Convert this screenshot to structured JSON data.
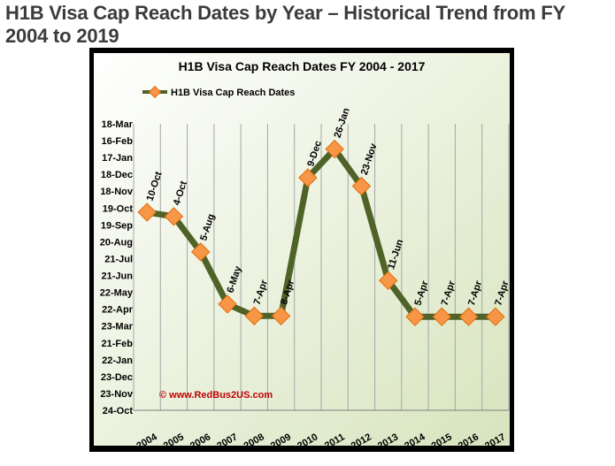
{
  "page": {
    "title": "H1B Visa Cap Reach Dates by Year – Historical Trend from FY 2004 to 2019"
  },
  "colors": {
    "line": "#4f6228",
    "marker_fill": "#f79646",
    "marker_stroke": "#e46c0a",
    "plot_bg_start": "#ffffff",
    "plot_bg_end": "#d7e4bd",
    "frame": "#000000",
    "watermark": "#c00000"
  },
  "chart_data": {
    "type": "line",
    "title": "H1B Visa  Cap Reach Dates FY 2004 - 2017",
    "legend": "H1B Visa Cap Reach Dates",
    "legend_position": "top-left",
    "watermark": "© www.RedBus2US.com",
    "xlabel": "",
    "ylabel": "",
    "grid": "vertical",
    "y_ticks": [
      "18-Mar",
      "16-Feb",
      "17-Jan",
      "18-Dec",
      "18-Nov",
      "19-Oct",
      "19-Sep",
      "20-Aug",
      "21-Jul",
      "21-Jun",
      "22-May",
      "22-Apr",
      "23-Mar",
      "21-Feb",
      "22-Jan",
      "23-Dec",
      "23-Nov",
      "24-Oct"
    ],
    "y_tick_values": [
      17,
      16,
      15,
      14,
      13,
      12,
      11,
      10,
      9,
      8,
      7,
      6,
      5,
      4,
      3,
      2,
      1,
      0
    ],
    "ylim": [
      0,
      17
    ],
    "categories": [
      "2004",
      "2005",
      "2006",
      "2007",
      "2008",
      "2009",
      "2010",
      "2011",
      "2012",
      "2013",
      "2014",
      "2015",
      "2016",
      "2017"
    ],
    "series": [
      {
        "name": "H1B Visa Cap Reach Dates",
        "values": [
          11.75,
          11.5,
          9.4,
          6.3,
          5.6,
          5.6,
          13.8,
          15.5,
          13.3,
          7.7,
          5.55,
          5.55,
          5.55,
          5.55
        ],
        "labels": [
          "10-Oct",
          "4-Oct",
          "5-Aug",
          "6-May",
          "7-Apr",
          "8-Apr",
          "9-Dec",
          "26-Jan",
          "23-Nov",
          "11-Jun",
          "5-Apr",
          "7-Apr",
          "7-Apr",
          "7-Apr"
        ]
      }
    ]
  }
}
